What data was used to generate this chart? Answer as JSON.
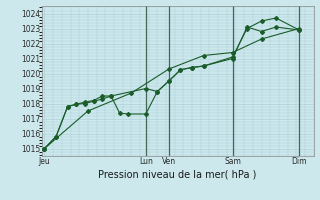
{
  "xlabel": "Pression niveau de la mer( hPa )",
  "ylim": [
    1014.5,
    1024.5
  ],
  "yticks": [
    1015,
    1016,
    1017,
    1018,
    1019,
    1020,
    1021,
    1022,
    1023,
    1024
  ],
  "bg_color": "#cce8ec",
  "grid_color": "#aacdd4",
  "line_color": "#1a5c2a",
  "day_labels": [
    "Jeu",
    "Lun",
    "Ven",
    "Sam",
    "Dim"
  ],
  "day_positions": [
    0,
    3.5,
    4.3,
    6.5,
    8.8
  ],
  "vline_positions": [
    3.5,
    4.3,
    6.5,
    8.8
  ],
  "xlim": [
    -0.1,
    9.3
  ],
  "line1_x": [
    0,
    0.4,
    0.8,
    1.1,
    1.4,
    1.7,
    2.0,
    2.3,
    3.5,
    3.9,
    4.3,
    4.7,
    5.1,
    5.5,
    6.5,
    7.0,
    7.5,
    8.0,
    8.8
  ],
  "line1_y": [
    1015.0,
    1015.8,
    1017.8,
    1017.95,
    1018.0,
    1018.15,
    1018.3,
    1018.5,
    1019.0,
    1018.8,
    1019.5,
    1020.25,
    1020.4,
    1020.5,
    1021.0,
    1023.1,
    1022.8,
    1023.1,
    1022.9
  ],
  "line2_x": [
    0,
    0.4,
    0.8,
    1.1,
    1.4,
    1.7,
    2.0,
    2.3,
    2.6,
    2.9,
    3.5,
    3.9,
    4.3,
    4.7,
    5.1,
    5.5,
    6.5,
    7.0,
    7.5,
    8.0,
    8.8
  ],
  "line2_y": [
    1015.0,
    1015.8,
    1017.8,
    1017.95,
    1018.1,
    1018.2,
    1018.5,
    1018.5,
    1017.35,
    1017.3,
    1017.3,
    1018.8,
    1019.5,
    1020.25,
    1020.4,
    1020.5,
    1021.1,
    1023.0,
    1023.5,
    1023.7,
    1022.9
  ],
  "line3_x": [
    0,
    1.5,
    3.0,
    4.3,
    5.5,
    6.5,
    7.5,
    8.8
  ],
  "line3_y": [
    1015.0,
    1017.5,
    1018.7,
    1020.3,
    1021.2,
    1021.4,
    1022.3,
    1023.0
  ]
}
